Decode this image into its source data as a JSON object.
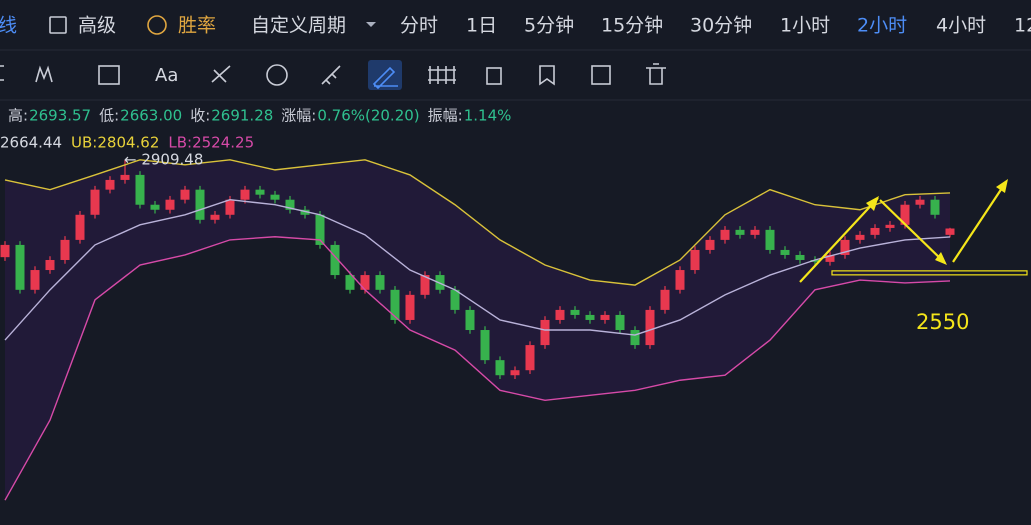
{
  "toolbar": {
    "items": [
      "线",
      "高级",
      "胜率",
      "自定义周期",
      "分时",
      "1日",
      "5分钟",
      "15分钟",
      "30分钟",
      "1小时",
      "2小时",
      "4小时",
      "12"
    ],
    "active": "2小时",
    "tool_text": "Aa"
  },
  "stats": {
    "items": [
      [
        "高:",
        "2693.57"
      ],
      [
        "低:",
        "2663.00"
      ],
      [
        "收:",
        "2691.28"
      ],
      [
        "涨幅:",
        "0.76%(20.20)"
      ],
      [
        "振幅:",
        "1.14%"
      ]
    ],
    "indicators": [
      "2664.44",
      "UB:2804.62",
      "LB:2524.25"
    ]
  },
  "chart_data": {
    "type": "candlestick",
    "ylim": [
      1747,
      3005
    ],
    "up_color": "#e8384f",
    "down_color": "#37b24d",
    "candles": [
      [
        2600,
        2651,
        2588,
        2639
      ],
      [
        2639,
        2651,
        2484,
        2496
      ],
      [
        2496,
        2571,
        2484,
        2559
      ],
      [
        2559,
        2603,
        2547,
        2591
      ],
      [
        2591,
        2667,
        2579,
        2655
      ],
      [
        2655,
        2747,
        2643,
        2735
      ],
      [
        2735,
        2827,
        2723,
        2815
      ],
      [
        2815,
        2858,
        2803,
        2846
      ],
      [
        2846,
        2909.48,
        2834,
        2862
      ],
      [
        2862,
        2874,
        2755,
        2767
      ],
      [
        2767,
        2779,
        2739,
        2751
      ],
      [
        2751,
        2795,
        2739,
        2783
      ],
      [
        2783,
        2827,
        2771,
        2815
      ],
      [
        2815,
        2827,
        2707,
        2719
      ],
      [
        2719,
        2747,
        2707,
        2735
      ],
      [
        2735,
        2795,
        2723,
        2783
      ],
      [
        2783,
        2827,
        2771,
        2815
      ],
      [
        2815,
        2827,
        2787,
        2799
      ],
      [
        2799,
        2811,
        2771,
        2783
      ],
      [
        2783,
        2795,
        2739,
        2751
      ],
      [
        2751,
        2763,
        2723,
        2735
      ],
      [
        2735,
        2747,
        2627,
        2639
      ],
      [
        2639,
        2651,
        2531,
        2543
      ],
      [
        2543,
        2555,
        2484,
        2496
      ],
      [
        2496,
        2555,
        2484,
        2543
      ],
      [
        2543,
        2555,
        2484,
        2496
      ],
      [
        2496,
        2508,
        2388,
        2400
      ],
      [
        2400,
        2492,
        2388,
        2480
      ],
      [
        2480,
        2555,
        2468,
        2543
      ],
      [
        2543,
        2555,
        2484,
        2496
      ],
      [
        2496,
        2508,
        2420,
        2432
      ],
      [
        2432,
        2444,
        2356,
        2368
      ],
      [
        2368,
        2380,
        2260,
        2272
      ],
      [
        2272,
        2284,
        2212,
        2224
      ],
      [
        2224,
        2252,
        2212,
        2240
      ],
      [
        2240,
        2332,
        2228,
        2320
      ],
      [
        2320,
        2412,
        2308,
        2400
      ],
      [
        2400,
        2444,
        2388,
        2432
      ],
      [
        2432,
        2444,
        2404,
        2416
      ],
      [
        2416,
        2428,
        2388,
        2400
      ],
      [
        2400,
        2428,
        2388,
        2416
      ],
      [
        2416,
        2428,
        2356,
        2368
      ],
      [
        2368,
        2380,
        2308,
        2320
      ],
      [
        2320,
        2444,
        2308,
        2432
      ],
      [
        2432,
        2508,
        2420,
        2496
      ],
      [
        2496,
        2571,
        2484,
        2559
      ],
      [
        2559,
        2635,
        2547,
        2623
      ],
      [
        2623,
        2667,
        2611,
        2655
      ],
      [
        2655,
        2699,
        2643,
        2687
      ],
      [
        2687,
        2699,
        2659,
        2671
      ],
      [
        2671,
        2699,
        2659,
        2687
      ],
      [
        2687,
        2699,
        2611,
        2623
      ],
      [
        2623,
        2635,
        2595,
        2607
      ],
      [
        2607,
        2619,
        2579,
        2591
      ],
      [
        2591,
        2603,
        2573,
        2585
      ],
      [
        2585,
        2619,
        2573,
        2607
      ],
      [
        2607,
        2667,
        2595,
        2655
      ],
      [
        2655,
        2683,
        2643,
        2671
      ],
      [
        2671,
        2705,
        2659,
        2693
      ],
      [
        2693,
        2715,
        2681,
        2703
      ],
      [
        2703,
        2779,
        2691,
        2767
      ],
      [
        2767,
        2795,
        2755,
        2783
      ],
      [
        2783,
        2795,
        2723,
        2735
      ],
      [
        2671.08,
        2693.57,
        2663.0,
        2691.28
      ]
    ],
    "bands": {
      "x": [
        0,
        3,
        6,
        9,
        12,
        15,
        18,
        21,
        24,
        27,
        30,
        33,
        36,
        39,
        42,
        45,
        48,
        51,
        54,
        57,
        60,
        63
      ],
      "ub": [
        2846,
        2815,
        2862,
        2910,
        2894,
        2910,
        2878,
        2894,
        2910,
        2862,
        2767,
        2655,
        2575,
        2527,
        2511,
        2591,
        2735,
        2815,
        2767,
        2751,
        2799,
        2804.62
      ],
      "mid": [
        2336,
        2496,
        2639,
        2703,
        2735,
        2783,
        2767,
        2735,
        2671,
        2559,
        2496,
        2400,
        2368,
        2368,
        2352,
        2400,
        2480,
        2543,
        2591,
        2629,
        2655,
        2664.44
      ],
      "lb": [
        1826,
        2081,
        2464,
        2575,
        2607,
        2655,
        2665,
        2655,
        2496,
        2368,
        2304,
        2176,
        2144,
        2160,
        2176,
        2208,
        2224,
        2336,
        2496,
        2527,
        2518,
        2524.25
      ],
      "colors": {
        "ub": "#d9c23a",
        "mid": "#b9b2d9",
        "lb": "#d64aa8"
      }
    },
    "high_marker": {
      "value": 2909.48,
      "label": "← 2909.48"
    },
    "level": {
      "value": 2550,
      "label": "2550"
    }
  }
}
